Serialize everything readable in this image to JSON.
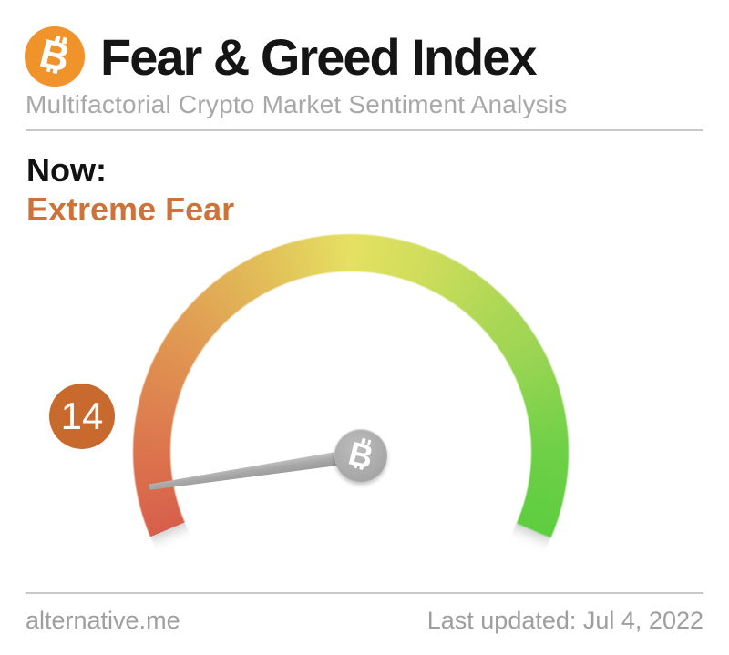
{
  "header": {
    "logo_icon": "bitcoin",
    "logo_symbol": "B",
    "title": "Fear & Greed Index",
    "subtitle": "Multifactorial Crypto Market Sentiment Analysis"
  },
  "now": {
    "label": "Now:",
    "classification": "Extreme Fear"
  },
  "chart_data": {
    "type": "gauge",
    "title": "Fear & Greed Index",
    "value": 14,
    "min": 0,
    "max": 100,
    "classification": "Extreme Fear",
    "needle_start_deg_below_horizontal": 23,
    "sweep_deg": 226,
    "scale_gradient": [
      {
        "at": 0,
        "color": "#d75f4b"
      },
      {
        "at": 25,
        "color": "#e09a52"
      },
      {
        "at": 50,
        "color": "#e5e062"
      },
      {
        "at": 75,
        "color": "#9bd553"
      },
      {
        "at": 100,
        "color": "#5ecd40"
      }
    ],
    "hub_icon": "bitcoin",
    "hub_symbol": "B"
  },
  "colors": {
    "bitcoin_orange": "#f0932b",
    "classification_text": "#cd7239",
    "badge_bg": "#c8692e",
    "needle_gray": "#a9a9a9",
    "subtitle_gray": "#a8a8a8",
    "footer_gray": "#9e9e9e"
  },
  "footer": {
    "source": "alternative.me",
    "last_updated": "Last updated: Jul 4, 2022"
  }
}
